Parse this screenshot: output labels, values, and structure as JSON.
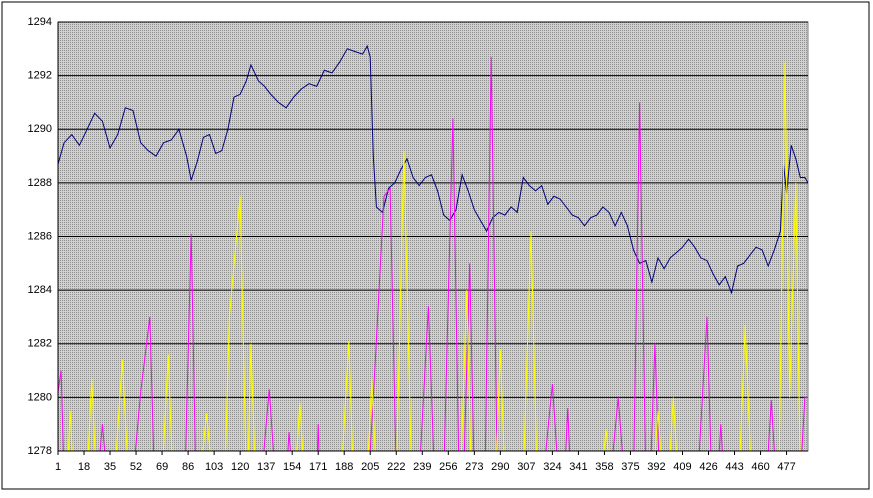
{
  "chart_data": {
    "type": "line",
    "xlim": [
      1,
      491
    ],
    "xticks": [
      1,
      18,
      35,
      52,
      69,
      86,
      103,
      120,
      137,
      154,
      171,
      188,
      205,
      222,
      239,
      256,
      273,
      290,
      307,
      324,
      341,
      358,
      375,
      392,
      409,
      426,
      443,
      460,
      477
    ],
    "ylim": [
      1278,
      1294
    ],
    "yticks": [
      1278,
      1280,
      1282,
      1284,
      1286,
      1288,
      1290,
      1292,
      1294
    ],
    "grid": true,
    "series": [
      {
        "color": "#000080",
        "x": [
          1,
          5,
          10,
          15,
          20,
          25,
          30,
          35,
          40,
          45,
          50,
          55,
          60,
          65,
          70,
          75,
          80,
          85,
          88,
          92,
          96,
          100,
          104,
          108,
          112,
          116,
          120,
          124,
          127,
          132,
          136,
          140,
          145,
          150,
          155,
          160,
          165,
          170,
          175,
          180,
          185,
          190,
          195,
          200,
          203,
          205,
          207,
          209,
          213,
          217,
          221,
          225,
          229,
          233,
          237,
          241,
          245,
          249,
          253,
          257,
          261,
          265,
          269,
          273,
          277,
          281,
          285,
          289,
          293,
          297,
          301,
          305,
          309,
          313,
          317,
          321,
          325,
          329,
          333,
          337,
          341,
          345,
          349,
          353,
          357,
          361,
          365,
          369,
          373,
          377,
          381,
          385,
          389,
          393,
          397,
          401,
          405,
          409,
          413,
          417,
          421,
          425,
          429,
          433,
          437,
          441,
          445,
          449,
          453,
          457,
          461,
          465,
          469,
          473,
          475,
          477,
          480,
          483,
          486,
          489,
          491
        ],
        "values": [
          1288.7,
          1289.5,
          1289.8,
          1289.4,
          1290.0,
          1290.6,
          1290.3,
          1289.3,
          1289.8,
          1290.8,
          1290.7,
          1289.5,
          1289.2,
          1289.0,
          1289.5,
          1289.6,
          1290.0,
          1289.0,
          1288.1,
          1288.8,
          1289.7,
          1289.8,
          1289.1,
          1289.2,
          1290.0,
          1291.2,
          1291.3,
          1291.8,
          1292.4,
          1291.8,
          1291.6,
          1291.3,
          1291.0,
          1290.8,
          1291.2,
          1291.5,
          1291.7,
          1291.6,
          1292.2,
          1292.1,
          1292.5,
          1293.0,
          1292.9,
          1292.8,
          1293.1,
          1292.7,
          1289.0,
          1287.1,
          1286.9,
          1287.8,
          1288.0,
          1288.5,
          1288.9,
          1288.2,
          1287.9,
          1288.2,
          1288.3,
          1287.7,
          1286.8,
          1286.6,
          1287.0,
          1288.3,
          1287.7,
          1287.0,
          1286.6,
          1286.2,
          1286.7,
          1286.9,
          1286.8,
          1287.1,
          1286.9,
          1288.2,
          1287.9,
          1287.7,
          1287.9,
          1287.2,
          1287.5,
          1287.4,
          1287.1,
          1286.8,
          1286.7,
          1286.4,
          1286.7,
          1286.8,
          1287.1,
          1286.9,
          1286.4,
          1286.9,
          1286.4,
          1285.5,
          1285.0,
          1285.1,
          1284.3,
          1285.2,
          1284.8,
          1285.2,
          1285.4,
          1285.6,
          1285.9,
          1285.6,
          1285.2,
          1285.1,
          1284.6,
          1284.2,
          1284.5,
          1283.9,
          1284.9,
          1285.0,
          1285.3,
          1285.6,
          1285.5,
          1284.9,
          1285.5,
          1286.2,
          1288.7,
          1287.6,
          1289.4,
          1288.9,
          1288.2,
          1288.2,
          1288.0
        ]
      },
      {
        "color": "#ff00ff",
        "x": [
          1,
          3,
          5,
          27,
          30,
          33,
          50,
          55,
          61,
          64,
          84,
          88,
          91,
          134,
          139,
          143,
          150,
          152,
          154,
          170,
          171,
          172,
          204,
          208,
          214,
          218,
          222,
          237,
          243,
          247,
          253,
          259,
          263,
          266,
          270,
          273,
          280,
          284,
          288,
          318,
          324,
          328,
          332,
          334,
          336,
          362,
          367,
          371,
          377,
          381,
          385,
          388,
          391,
          394,
          419,
          425,
          428,
          432,
          434,
          436,
          464,
          467,
          470,
          486,
          489,
          491
        ],
        "values": [
          1280.2,
          1281,
          1277,
          1277,
          1279,
          1277,
          1277,
          1280.2,
          1283,
          1277,
          1277,
          1286.1,
          1277,
          1277,
          1280.3,
          1277,
          1277,
          1278.7,
          1277,
          1277,
          1279,
          1277,
          1277,
          1281,
          1287.5,
          1287.8,
          1277,
          1277,
          1283.4,
          1277,
          1277,
          1290.4,
          1277,
          1277,
          1285,
          1277,
          1277,
          1292.7,
          1277,
          1277,
          1280.5,
          1277,
          1277,
          1279.6,
          1277,
          1277,
          1280,
          1277,
          1277,
          1291,
          1277,
          1277,
          1282,
          1277,
          1277,
          1283,
          1277,
          1277,
          1279,
          1277,
          1277,
          1279.9,
          1277,
          1277,
          1280,
          1280
        ]
      },
      {
        "color": "#ffff00",
        "x": [
          1,
          7,
          9,
          11,
          20,
          23,
          26,
          38,
          43,
          47,
          69,
          73,
          76,
          94,
          98,
          102,
          110,
          113,
          120,
          124,
          125,
          127,
          130,
          156,
          159,
          162,
          186,
          191,
          194,
          203,
          206,
          209,
          222,
          227,
          232,
          264,
          268,
          271,
          287,
          290,
          293,
          305,
          310,
          314,
          356,
          359,
          362,
          390,
          393,
          396,
          400,
          403,
          406,
          446,
          450,
          454,
          472,
          476,
          479,
          483,
          486,
          491
        ],
        "values": [
          1277,
          1277,
          1279.5,
          1277,
          1277,
          1280.7,
          1277,
          1277,
          1281.4,
          1277,
          1277,
          1281.6,
          1277,
          1277,
          1279.4,
          1277,
          1277,
          1283,
          1287.5,
          1277,
          1277,
          1282,
          1277,
          1277,
          1279.8,
          1277,
          1277,
          1282.1,
          1277,
          1277,
          1280.7,
          1277,
          1277,
          1289.2,
          1277,
          1277,
          1284,
          1277,
          1277,
          1281.8,
          1277,
          1277,
          1286.2,
          1277,
          1277,
          1278.8,
          1277,
          1277,
          1279.5,
          1277,
          1277,
          1280,
          1277,
          1277,
          1282.7,
          1277,
          1277,
          1292.5,
          1280,
          1288,
          1277,
          1277
        ]
      }
    ]
  }
}
